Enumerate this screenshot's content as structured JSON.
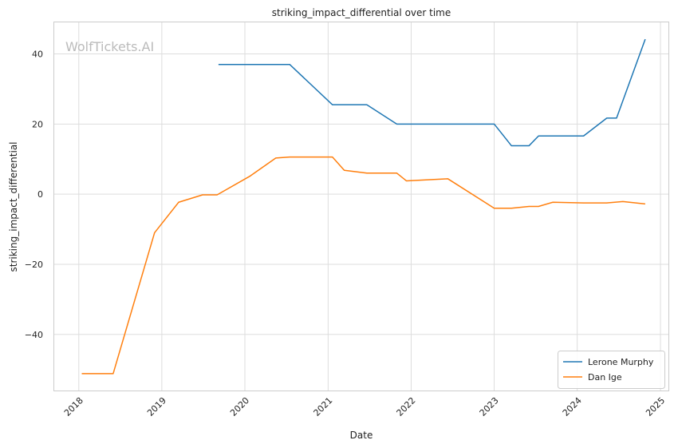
{
  "chart_data": {
    "type": "line",
    "title": "striking_impact_differential over time",
    "xlabel": "Date",
    "ylabel": "striking_impact_differential",
    "watermark": "WolfTickets.AI",
    "xlim": [
      "2017-09-15",
      "2025-02-05"
    ],
    "ylim": [
      -56,
      49
    ],
    "x_ticks": [
      "2018",
      "2019",
      "2020",
      "2021",
      "2022",
      "2023",
      "2024",
      "2025"
    ],
    "y_ticks": [
      -40,
      -20,
      0,
      20,
      40
    ],
    "y_tick_labels": [
      "−40",
      "−20",
      "0",
      "20",
      "40"
    ],
    "grid": true,
    "legend_position": "bottom-right",
    "series": [
      {
        "name": "Lerone Murphy",
        "color": "#1f77b4",
        "points": [
          [
            "2019-09-07",
            37.0
          ],
          [
            "2020-07-16",
            37.0
          ],
          [
            "2021-01-20",
            25.5
          ],
          [
            "2021-06-20",
            25.5
          ],
          [
            "2021-10-30",
            20.0
          ],
          [
            "2023-01-01",
            20.0
          ],
          [
            "2023-03-18",
            13.8
          ],
          [
            "2023-06-03",
            13.8
          ],
          [
            "2023-07-15",
            16.6
          ],
          [
            "2024-01-29",
            16.6
          ],
          [
            "2024-05-10",
            21.7
          ],
          [
            "2024-06-22",
            21.7
          ],
          [
            "2024-10-26",
            44.2
          ]
        ]
      },
      {
        "name": "Dan Ige",
        "color": "#ff7f0e",
        "points": [
          [
            "2018-01-14",
            -51.2
          ],
          [
            "2018-06-01",
            -51.2
          ],
          [
            "2018-11-30",
            -11.0
          ],
          [
            "2019-03-16",
            -2.3
          ],
          [
            "2019-06-29",
            -0.2
          ],
          [
            "2019-09-01",
            -0.2
          ],
          [
            "2020-01-25",
            5.2
          ],
          [
            "2020-05-16",
            10.3
          ],
          [
            "2020-07-16",
            10.6
          ],
          [
            "2021-01-20",
            10.6
          ],
          [
            "2021-03-13",
            6.8
          ],
          [
            "2021-06-20",
            6.0
          ],
          [
            "2021-10-30",
            6.0
          ],
          [
            "2021-12-11",
            3.8
          ],
          [
            "2022-06-11",
            4.4
          ],
          [
            "2023-01-01",
            -4.0
          ],
          [
            "2023-03-18",
            -4.0
          ],
          [
            "2023-06-03",
            -3.5
          ],
          [
            "2023-07-15",
            -3.5
          ],
          [
            "2023-09-16",
            -2.3
          ],
          [
            "2024-01-29",
            -2.5
          ],
          [
            "2024-05-10",
            -2.5
          ],
          [
            "2024-07-20",
            -2.1
          ],
          [
            "2024-10-26",
            -2.8
          ]
        ]
      }
    ]
  }
}
